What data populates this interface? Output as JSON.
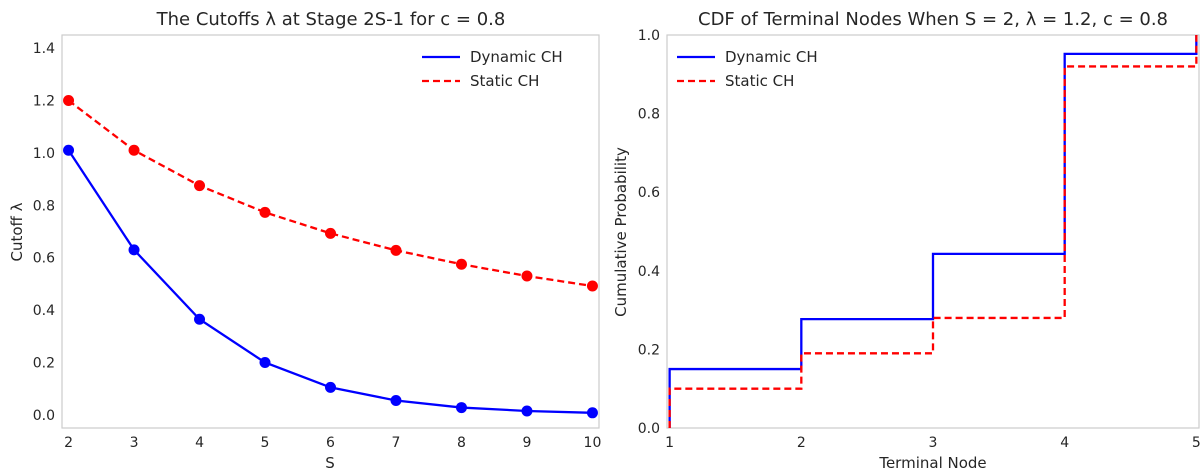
{
  "chart_data": [
    {
      "type": "line",
      "title": "The Cutoffs λ at Stage 2S-1 for c = 0.8",
      "xlabel": "S",
      "ylabel": "Cutoff  λ",
      "xlim": [
        1.9,
        10.1
      ],
      "ylim": [
        -0.05,
        1.45
      ],
      "xticks": [
        2,
        3,
        4,
        5,
        6,
        7,
        8,
        9,
        10
      ],
      "xtick_labels": [
        "2",
        "3",
        "4",
        "5",
        "6",
        "7",
        "8",
        "9",
        "10"
      ],
      "yticks": [
        0.0,
        0.2,
        0.4,
        0.6,
        0.8,
        1.0,
        1.2,
        1.4
      ],
      "ytick_labels": [
        "0.0",
        "0.2",
        "0.4",
        "0.6",
        "0.8",
        "1.0",
        "1.2",
        "1.4"
      ],
      "grid": false,
      "legend_position": "top-right",
      "x": [
        2,
        3,
        4,
        5,
        6,
        7,
        8,
        9,
        10
      ],
      "series": [
        {
          "name": "Dynamic CH",
          "color": "#0000ff",
          "style": "solid",
          "marker": "circle",
          "values": [
            1.01,
            0.63,
            0.365,
            0.2,
            0.105,
            0.055,
            0.028,
            0.015,
            0.008
          ]
        },
        {
          "name": "Static CH",
          "color": "#ff0000",
          "style": "dashed",
          "marker": "circle",
          "values": [
            1.2,
            1.01,
            0.875,
            0.773,
            0.693,
            0.628,
            0.575,
            0.53,
            0.492
          ]
        }
      ]
    },
    {
      "type": "line",
      "subtype": "step",
      "title": "CDF of Terminal Nodes When S = 2, λ = 1.2, c = 0.8",
      "xlabel": "Terminal Node",
      "ylabel": "Cumulative Probability",
      "xlim": [
        0.98,
        5.02
      ],
      "ylim": [
        0.0,
        1.0
      ],
      "xticks": [
        1,
        2,
        3,
        4,
        5
      ],
      "xtick_labels": [
        "1",
        "2",
        "3",
        "4",
        "5"
      ],
      "yticks": [
        0.0,
        0.2,
        0.4,
        0.6,
        0.8,
        1.0
      ],
      "ytick_labels": [
        "0.0",
        "0.2",
        "0.4",
        "0.6",
        "0.8",
        "1.0"
      ],
      "grid": false,
      "legend_position": "top-left",
      "x": [
        1,
        2,
        3,
        4,
        5
      ],
      "series": [
        {
          "name": "Dynamic CH",
          "color": "#0000ff",
          "style": "solid",
          "values": [
            0.15,
            0.277,
            0.443,
            0.952,
            1.0
          ]
        },
        {
          "name": "Static CH",
          "color": "#ff0000",
          "style": "dashed",
          "values": [
            0.1,
            0.19,
            0.28,
            0.92,
            1.0
          ]
        }
      ]
    }
  ]
}
